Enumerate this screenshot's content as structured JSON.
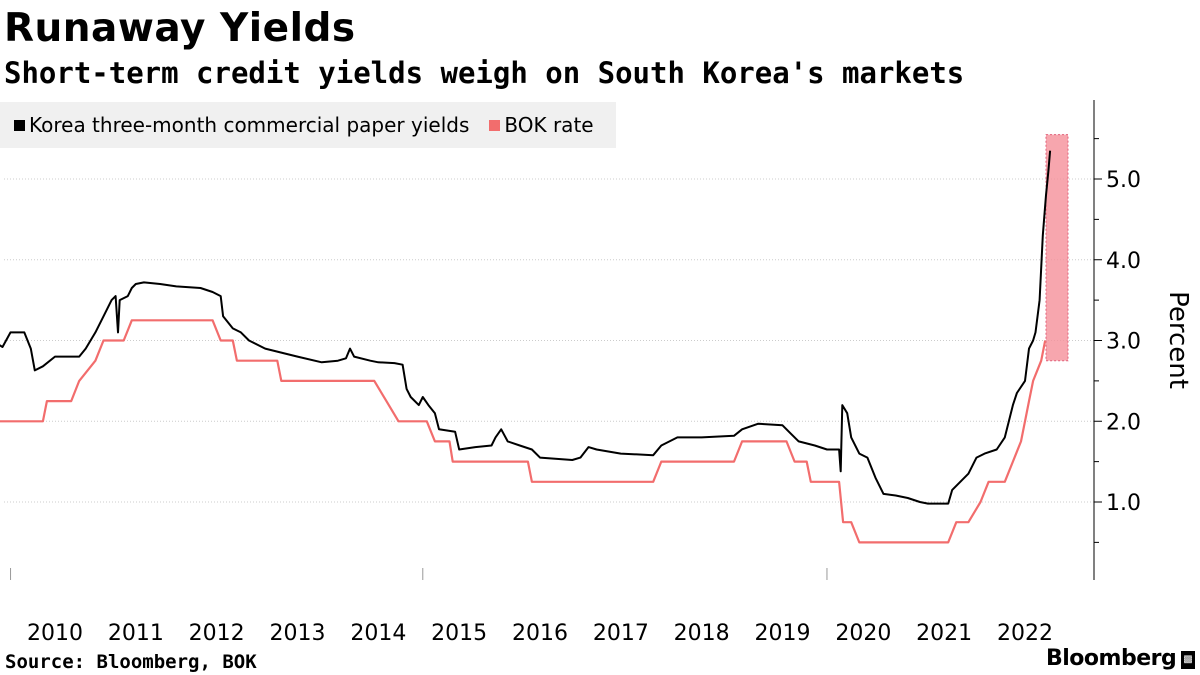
{
  "header": {
    "title": "Runaway Yields",
    "subtitle": "Short-term credit yields weigh on South Korea's markets"
  },
  "footer": {
    "source": "Source: Bloomberg, BOK",
    "brand": "Bloomberg"
  },
  "colors": {
    "cp_line": "#000000",
    "bok_line": "#f26d6d",
    "highlight_fill": "#f5909a",
    "grid": "#cccccc",
    "legend_bg": "#f0f0f0"
  },
  "chart_data": {
    "type": "line",
    "title": "Runaway Yields",
    "subtitle": "Short-term credit yields weigh on South Korea's markets",
    "xlabel": "",
    "ylabel": "Percent",
    "xlim": [
      2009.3,
      2022.9
    ],
    "ylim": [
      0,
      6
    ],
    "yticks": [
      1.0,
      2.0,
      3.0,
      4.0,
      5.0
    ],
    "ytick_labels": [
      "1.0",
      "2.0",
      "3.0",
      "4.0",
      "5.0"
    ],
    "xticks": [
      2010,
      2011,
      2012,
      2013,
      2014,
      2015,
      2016,
      2017,
      2018,
      2019,
      2020,
      2021,
      2022
    ],
    "xtick_labels": [
      "2010",
      "2011",
      "2012",
      "2013",
      "2014",
      "2015",
      "2016",
      "2017",
      "2018",
      "2019",
      "2020",
      "2021",
      "2022"
    ],
    "legend": "top-left",
    "highlight": {
      "x_range": [
        2022.73,
        2022.9
      ],
      "y_range": [
        2.75,
        5.55
      ]
    },
    "series": [
      {
        "name": "Korea three-month commercial paper yields",
        "color": "#000000",
        "points": [
          [
            2009.3,
            2.95
          ],
          [
            2009.35,
            2.92
          ],
          [
            2009.45,
            3.1
          ],
          [
            2009.62,
            3.1
          ],
          [
            2009.7,
            2.9
          ],
          [
            2009.75,
            2.63
          ],
          [
            2009.85,
            2.68
          ],
          [
            2010.0,
            2.8
          ],
          [
            2010.3,
            2.8
          ],
          [
            2010.38,
            2.9
          ],
          [
            2010.5,
            3.1
          ],
          [
            2010.6,
            3.3
          ],
          [
            2010.7,
            3.5
          ],
          [
            2010.75,
            3.55
          ],
          [
            2010.78,
            3.1
          ],
          [
            2010.8,
            3.5
          ],
          [
            2010.9,
            3.55
          ],
          [
            2010.95,
            3.65
          ],
          [
            2011.0,
            3.7
          ],
          [
            2011.1,
            3.72
          ],
          [
            2011.3,
            3.7
          ],
          [
            2011.5,
            3.67
          ],
          [
            2011.8,
            3.65
          ],
          [
            2011.95,
            3.6
          ],
          [
            2012.05,
            3.55
          ],
          [
            2012.08,
            3.3
          ],
          [
            2012.2,
            3.15
          ],
          [
            2012.3,
            3.1
          ],
          [
            2012.4,
            3.0
          ],
          [
            2012.6,
            2.9
          ],
          [
            2012.8,
            2.85
          ],
          [
            2013.0,
            2.8
          ],
          [
            2013.3,
            2.73
          ],
          [
            2013.5,
            2.75
          ],
          [
            2013.6,
            2.78
          ],
          [
            2013.65,
            2.9
          ],
          [
            2013.7,
            2.8
          ],
          [
            2013.9,
            2.75
          ],
          [
            2014.0,
            2.73
          ],
          [
            2014.2,
            2.72
          ],
          [
            2014.3,
            2.7
          ],
          [
            2014.35,
            2.4
          ],
          [
            2014.4,
            2.3
          ],
          [
            2014.5,
            2.2
          ],
          [
            2014.55,
            2.3
          ],
          [
            2014.62,
            2.2
          ],
          [
            2014.7,
            2.1
          ],
          [
            2014.75,
            1.9
          ],
          [
            2014.95,
            1.87
          ],
          [
            2015.0,
            1.65
          ],
          [
            2015.2,
            1.68
          ],
          [
            2015.4,
            1.7
          ],
          [
            2015.45,
            1.8
          ],
          [
            2015.52,
            1.9
          ],
          [
            2015.6,
            1.75
          ],
          [
            2015.75,
            1.7
          ],
          [
            2015.9,
            1.65
          ],
          [
            2016.0,
            1.55
          ],
          [
            2016.4,
            1.52
          ],
          [
            2016.5,
            1.55
          ],
          [
            2016.6,
            1.68
          ],
          [
            2016.7,
            1.65
          ],
          [
            2017.0,
            1.6
          ],
          [
            2017.4,
            1.58
          ],
          [
            2017.5,
            1.7
          ],
          [
            2017.7,
            1.8
          ],
          [
            2018.0,
            1.8
          ],
          [
            2018.4,
            1.82
          ],
          [
            2018.5,
            1.9
          ],
          [
            2018.7,
            1.97
          ],
          [
            2019.0,
            1.95
          ],
          [
            2019.1,
            1.85
          ],
          [
            2019.2,
            1.75
          ],
          [
            2019.4,
            1.7
          ],
          [
            2019.55,
            1.65
          ],
          [
            2019.7,
            1.65
          ],
          [
            2019.72,
            1.38
          ],
          [
            2019.74,
            2.2
          ],
          [
            2019.8,
            2.1
          ],
          [
            2019.85,
            1.8
          ],
          [
            2019.95,
            1.6
          ],
          [
            2020.05,
            1.55
          ],
          [
            2020.15,
            1.3
          ],
          [
            2020.25,
            1.1
          ],
          [
            2020.4,
            1.08
          ],
          [
            2020.55,
            1.05
          ],
          [
            2020.7,
            1.0
          ],
          [
            2020.8,
            0.98
          ],
          [
            2021.05,
            0.98
          ],
          [
            2021.1,
            1.15
          ],
          [
            2021.2,
            1.25
          ],
          [
            2021.3,
            1.35
          ],
          [
            2021.4,
            1.55
          ],
          [
            2021.5,
            1.6
          ],
          [
            2021.65,
            1.65
          ],
          [
            2021.75,
            1.8
          ],
          [
            2021.85,
            2.2
          ],
          [
            2021.9,
            2.35
          ],
          [
            2022.0,
            2.5
          ],
          [
            2022.05,
            2.9
          ],
          [
            2022.1,
            3.0
          ],
          [
            2022.13,
            3.1
          ],
          [
            2022.18,
            3.5
          ],
          [
            2022.22,
            4.3
          ],
          [
            2022.26,
            4.8
          ],
          [
            2022.29,
            5.1
          ],
          [
            2022.31,
            5.35
          ]
        ]
      },
      {
        "name": "BOK rate",
        "color": "#f26d6d",
        "points": [
          [
            2009.3,
            2.0
          ],
          [
            2009.85,
            2.0
          ],
          [
            2009.9,
            2.25
          ],
          [
            2010.2,
            2.25
          ],
          [
            2010.3,
            2.5
          ],
          [
            2010.5,
            2.75
          ],
          [
            2010.6,
            3.0
          ],
          [
            2010.85,
            3.0
          ],
          [
            2010.95,
            3.25
          ],
          [
            2011.95,
            3.25
          ],
          [
            2012.05,
            3.0
          ],
          [
            2012.2,
            3.0
          ],
          [
            2012.25,
            2.75
          ],
          [
            2012.75,
            2.75
          ],
          [
            2012.8,
            2.5
          ],
          [
            2013.95,
            2.5
          ],
          [
            2014.1,
            2.25
          ],
          [
            2014.25,
            2.0
          ],
          [
            2014.6,
            2.0
          ],
          [
            2014.7,
            1.75
          ],
          [
            2014.88,
            1.75
          ],
          [
            2014.92,
            1.5
          ],
          [
            2015.85,
            1.5
          ],
          [
            2015.9,
            1.25
          ],
          [
            2017.4,
            1.25
          ],
          [
            2017.5,
            1.5
          ],
          [
            2018.4,
            1.5
          ],
          [
            2018.5,
            1.75
          ],
          [
            2019.05,
            1.75
          ],
          [
            2019.15,
            1.5
          ],
          [
            2019.3,
            1.5
          ],
          [
            2019.35,
            1.25
          ],
          [
            2019.7,
            1.25
          ],
          [
            2019.75,
            0.75
          ],
          [
            2019.85,
            0.75
          ],
          [
            2019.95,
            0.5
          ],
          [
            2021.05,
            0.5
          ],
          [
            2021.15,
            0.75
          ],
          [
            2021.3,
            0.75
          ],
          [
            2021.45,
            1.0
          ],
          [
            2021.55,
            1.25
          ],
          [
            2021.75,
            1.25
          ],
          [
            2021.85,
            1.5
          ],
          [
            2021.95,
            1.75
          ],
          [
            2022.0,
            2.0
          ],
          [
            2022.05,
            2.25
          ],
          [
            2022.1,
            2.5
          ],
          [
            2022.2,
            2.75
          ],
          [
            2022.25,
            3.0
          ]
        ]
      }
    ]
  }
}
